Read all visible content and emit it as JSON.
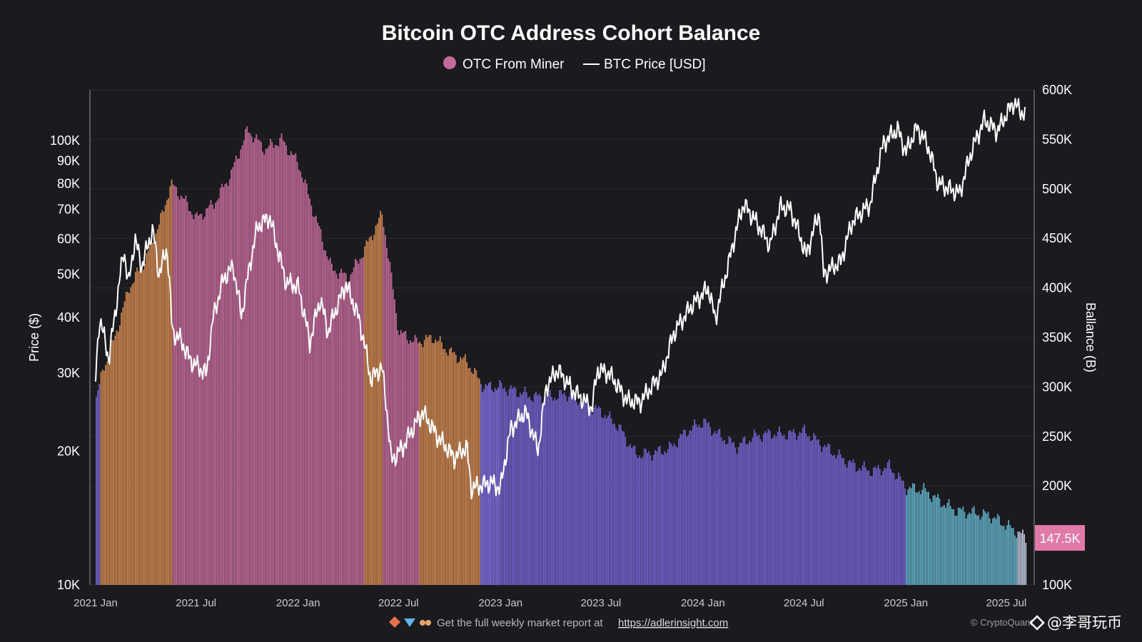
{
  "chart_data": {
    "type": "bar",
    "title": "Bitcoin OTC Address Cohort Balance",
    "legend": [
      {
        "name": "OTC From Miner",
        "marker": "dot",
        "color": "#c46b9b"
      },
      {
        "name": "BTC Price [USD]",
        "marker": "line",
        "color": "#ffffff"
      }
    ],
    "legend_position": "top-center",
    "ylabel_left": "Price ($)",
    "ylabel_right": "Ballance (B)",
    "y_left_scale": "log",
    "y_left_range": [
      10000,
      150000
    ],
    "y_right_range": [
      100000,
      600000
    ],
    "x_range": [
      "2021-01-01",
      "2025-08-10"
    ],
    "x_ticks": [
      "2021 Jan",
      "2021 Jul",
      "2022 Jan",
      "2022 Jul",
      "2023 Jan",
      "2023 Jul",
      "2024 Jan",
      "2024 Jul",
      "2025 Jan",
      "2025 Jul"
    ],
    "y_left_ticks": [
      "10K",
      "20K",
      "30K",
      "40K",
      "50K",
      "60K",
      "70K",
      "80K",
      "90K",
      "100K"
    ],
    "y_right_ticks": [
      "100K",
      "200K",
      "250K",
      "300K",
      "350K",
      "400K",
      "450K",
      "500K",
      "550K",
      "600K"
    ],
    "grid": true,
    "current_value_label": "147.5K",
    "current_value_color": "#e07aa8",
    "bar_color_scale": {
      "orange": "#c8834e",
      "pink": "#bd6795",
      "purple": "#6e5fc4",
      "teal": "#5ea8bd",
      "light": "#b7bdd3",
      "deep_purple": "#7a6ad6"
    },
    "balance_series": {
      "name": "OTC From Miner",
      "points": [
        [
          "2021-01-01",
          290000
        ],
        [
          "2021-01-15",
          320000
        ],
        [
          "2021-02-01",
          345000
        ],
        [
          "2021-03-01",
          400000
        ],
        [
          "2021-04-01",
          430000
        ],
        [
          "2021-05-01",
          475000
        ],
        [
          "2021-05-15",
          505000
        ],
        [
          "2021-06-01",
          495000
        ],
        [
          "2021-07-01",
          470000
        ],
        [
          "2021-08-01",
          485000
        ],
        [
          "2021-09-01",
          515000
        ],
        [
          "2021-10-01",
          560000
        ],
        [
          "2021-11-01",
          540000
        ],
        [
          "2021-12-01",
          550000
        ],
        [
          "2022-01-01",
          525000
        ],
        [
          "2022-02-01",
          470000
        ],
        [
          "2022-03-01",
          420000
        ],
        [
          "2022-04-01",
          410000
        ],
        [
          "2022-05-01",
          440000
        ],
        [
          "2022-06-01",
          475000
        ],
        [
          "2022-07-01",
          355000
        ],
        [
          "2022-08-01",
          345000
        ],
        [
          "2022-09-01",
          350000
        ],
        [
          "2022-10-01",
          335000
        ],
        [
          "2022-11-01",
          325000
        ],
        [
          "2022-12-01",
          300000
        ],
        [
          "2023-01-01",
          300000
        ],
        [
          "2023-02-01",
          295000
        ],
        [
          "2023-03-01",
          290000
        ],
        [
          "2023-04-01",
          290000
        ],
        [
          "2023-05-01",
          293000
        ],
        [
          "2023-06-01",
          283000
        ],
        [
          "2023-07-01",
          275000
        ],
        [
          "2023-08-01",
          260000
        ],
        [
          "2023-09-01",
          232000
        ],
        [
          "2023-10-01",
          233000
        ],
        [
          "2023-11-01",
          238000
        ],
        [
          "2023-12-01",
          255000
        ],
        [
          "2024-01-01",
          265000
        ],
        [
          "2024-02-01",
          250000
        ],
        [
          "2024-03-01",
          240000
        ],
        [
          "2024-04-01",
          250000
        ],
        [
          "2024-05-01",
          253000
        ],
        [
          "2024-06-01",
          252000
        ],
        [
          "2024-07-01",
          255000
        ],
        [
          "2024-08-01",
          242000
        ],
        [
          "2024-09-01",
          230000
        ],
        [
          "2024-10-01",
          220000
        ],
        [
          "2024-11-01",
          215000
        ],
        [
          "2024-12-01",
          220000
        ],
        [
          "2025-01-01",
          198000
        ],
        [
          "2025-02-01",
          196000
        ],
        [
          "2025-03-01",
          185000
        ],
        [
          "2025-04-01",
          175000
        ],
        [
          "2025-05-01",
          173000
        ],
        [
          "2025-06-01",
          170000
        ],
        [
          "2025-07-01",
          160000
        ],
        [
          "2025-08-05",
          147500
        ]
      ]
    },
    "price_series": {
      "name": "BTC Price [USD]",
      "points": [
        [
          "2021-01-01",
          29000
        ],
        [
          "2021-01-08",
          40000
        ],
        [
          "2021-01-25",
          32000
        ],
        [
          "2021-02-10",
          45000
        ],
        [
          "2021-02-21",
          57000
        ],
        [
          "2021-03-01",
          47000
        ],
        [
          "2021-03-13",
          60000
        ],
        [
          "2021-03-25",
          52000
        ],
        [
          "2021-04-14",
          63000
        ],
        [
          "2021-04-25",
          50000
        ],
        [
          "2021-05-10",
          57000
        ],
        [
          "2021-05-19",
          37000
        ],
        [
          "2021-06-01",
          36000
        ],
        [
          "2021-06-21",
          32000
        ],
        [
          "2021-07-20",
          29800
        ],
        [
          "2021-08-01",
          40000
        ],
        [
          "2021-08-20",
          49000
        ],
        [
          "2021-09-06",
          52000
        ],
        [
          "2021-09-21",
          40000
        ],
        [
          "2021-10-20",
          64000
        ],
        [
          "2021-11-10",
          67500
        ],
        [
          "2021-11-25",
          57000
        ],
        [
          "2021-12-10",
          48000
        ],
        [
          "2022-01-01",
          47000
        ],
        [
          "2022-01-22",
          35000
        ],
        [
          "2022-02-10",
          44000
        ],
        [
          "2022-02-24",
          37000
        ],
        [
          "2022-03-28",
          47500
        ],
        [
          "2022-04-20",
          40000
        ],
        [
          "2022-05-12",
          29000
        ],
        [
          "2022-06-01",
          31000
        ],
        [
          "2022-06-18",
          19000
        ],
        [
          "2022-07-10",
          20500
        ],
        [
          "2022-08-13",
          24500
        ],
        [
          "2022-09-10",
          21500
        ],
        [
          "2022-10-10",
          19300
        ],
        [
          "2022-11-01",
          20500
        ],
        [
          "2022-11-09",
          16500
        ],
        [
          "2022-12-15",
          17000
        ],
        [
          "2023-01-01",
          16500
        ],
        [
          "2023-01-20",
          22500
        ],
        [
          "2023-02-15",
          24500
        ],
        [
          "2023-03-10",
          20000
        ],
        [
          "2023-03-25",
          28000
        ],
        [
          "2023-04-14",
          30500
        ],
        [
          "2023-05-10",
          27500
        ],
        [
          "2023-06-15",
          25000
        ],
        [
          "2023-06-25",
          30500
        ],
        [
          "2023-07-15",
          30000
        ],
        [
          "2023-08-17",
          26000
        ],
        [
          "2023-09-10",
          25800
        ],
        [
          "2023-10-20",
          30000
        ],
        [
          "2023-11-10",
          37000
        ],
        [
          "2023-12-15",
          43000
        ],
        [
          "2024-01-11",
          46500
        ],
        [
          "2024-01-23",
          39500
        ],
        [
          "2024-02-15",
          52000
        ],
        [
          "2024-03-14",
          72000
        ],
        [
          "2024-04-15",
          63000
        ],
        [
          "2024-05-01",
          58000
        ],
        [
          "2024-05-20",
          71000
        ],
        [
          "2024-06-07",
          70000
        ],
        [
          "2024-07-05",
          55000
        ],
        [
          "2024-07-29",
          69000
        ],
        [
          "2024-08-05",
          50000
        ],
        [
          "2024-09-06",
          53500
        ],
        [
          "2024-09-27",
          66000
        ],
        [
          "2024-10-29",
          72000
        ],
        [
          "2024-11-12",
          88000
        ],
        [
          "2024-11-22",
          99000
        ],
        [
          "2024-12-17",
          106000
        ],
        [
          "2025-01-01",
          94000
        ],
        [
          "2025-01-21",
          107000
        ],
        [
          "2025-02-10",
          97000
        ],
        [
          "2025-02-28",
          80000
        ],
        [
          "2025-03-10",
          79000
        ],
        [
          "2025-04-08",
          76000
        ],
        [
          "2025-05-01",
          96000
        ],
        [
          "2025-05-22",
          111000
        ],
        [
          "2025-06-15",
          105000
        ],
        [
          "2025-07-14",
          122000
        ],
        [
          "2025-07-25",
          117000
        ],
        [
          "2025-08-05",
          114000
        ]
      ]
    }
  },
  "footer": {
    "text": "Get the full weekly market report at",
    "link": "https://adlerinsight.com"
  },
  "credit": "© CryptoQuant",
  "watermark": "@李哥玩币"
}
